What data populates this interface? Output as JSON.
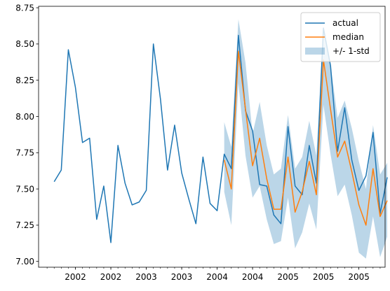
{
  "chart_data": {
    "type": "line",
    "title": "",
    "xlabel": "",
    "ylabel": "",
    "ylim": [
      6.96,
      8.76
    ],
    "yticks": [
      7.0,
      7.25,
      7.5,
      7.75,
      8.0,
      8.25,
      8.5,
      8.75
    ],
    "ytick_labels": [
      "7.00",
      "7.25",
      "7.50",
      "7.75",
      "8.00",
      "8.25",
      "8.50",
      "8.75"
    ],
    "x_range_index": [
      -2.2,
      46.7
    ],
    "xticks": [
      {
        "index": 3,
        "label": "2002"
      },
      {
        "index": 8,
        "label": "2002"
      },
      {
        "index": 13,
        "label": "2003"
      },
      {
        "index": 18,
        "label": "2003"
      },
      {
        "index": 23,
        "label": "2004"
      },
      {
        "index": 28,
        "label": "2004"
      },
      {
        "index": 33,
        "label": "2005"
      },
      {
        "index": 38,
        "label": "2005"
      },
      {
        "index": 43,
        "label": "2005"
      }
    ],
    "legend_position": "top-right",
    "series": [
      {
        "name": "actual",
        "color": "#1f77b4",
        "x_start": 0,
        "values": [
          7.55,
          7.63,
          8.46,
          8.2,
          7.82,
          7.85,
          7.29,
          7.52,
          7.13,
          7.8,
          7.54,
          7.39,
          7.41,
          7.49,
          8.5,
          8.12,
          7.63,
          7.94,
          7.61,
          7.43,
          7.26,
          7.72,
          7.4,
          7.35,
          7.74,
          7.64,
          8.56,
          8.04,
          7.9,
          7.53,
          7.52,
          7.32,
          7.26,
          7.93,
          7.52,
          7.46,
          7.8,
          7.54,
          8.61,
          8.35,
          7.76,
          8.06,
          7.7,
          7.49,
          7.59,
          7.89,
          7.33,
          7.58
        ]
      },
      {
        "name": "median",
        "color": "#ff7f0e",
        "x_start": 24,
        "values": [
          7.7,
          7.5,
          8.45,
          8.05,
          7.66,
          7.85,
          7.57,
          7.36,
          7.36,
          7.72,
          7.34,
          7.48,
          7.69,
          7.46,
          8.39,
          8.05,
          7.72,
          7.83,
          7.62,
          7.39,
          7.25,
          7.64,
          7.31,
          7.42
        ]
      }
    ],
    "band": {
      "name": "+/- 1-std",
      "color": "#1f77b4",
      "opacity": 0.3,
      "x_start": 24,
      "lower": [
        7.48,
        7.25,
        8.23,
        7.73,
        7.44,
        7.52,
        7.29,
        7.12,
        7.14,
        7.44,
        7.09,
        7.2,
        7.4,
        7.22,
        8.08,
        7.74,
        7.45,
        7.53,
        7.32,
        7.06,
        7.02,
        7.31,
        7.03,
        7.17
      ],
      "upper": [
        7.96,
        7.79,
        8.67,
        8.37,
        7.88,
        8.1,
        7.8,
        7.6,
        7.64,
        8.01,
        7.64,
        7.72,
        7.97,
        7.73,
        8.62,
        8.36,
        7.99,
        8.11,
        7.92,
        7.69,
        7.5,
        7.94,
        7.6,
        7.68
      ]
    }
  }
}
